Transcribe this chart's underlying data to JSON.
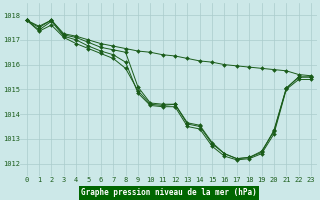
{
  "line1": [
    1017.8,
    1017.5,
    1017.8,
    1017.2,
    1017.1,
    1016.9,
    1016.7,
    1016.6,
    1016.5,
    1015.1,
    1014.45,
    1014.4,
    1014.4,
    1013.6,
    1013.5,
    1012.8,
    1012.4,
    1012.2,
    1012.25,
    1012.5,
    1013.3,
    1015.05,
    1015.5,
    1015.5
  ],
  "line2": [
    1017.8,
    1017.4,
    1017.75,
    1017.15,
    1017.0,
    1016.75,
    1016.55,
    1016.4,
    1016.1,
    1014.85,
    1014.35,
    1014.3,
    1014.3,
    1013.5,
    1013.4,
    1012.7,
    1012.3,
    1012.15,
    1012.2,
    1012.4,
    1013.2,
    1015.0,
    1015.4,
    1015.4
  ],
  "line3": [
    1017.8,
    1017.35,
    1017.6,
    1017.1,
    1016.85,
    1016.65,
    1016.45,
    1016.25,
    1015.85,
    1014.95,
    1014.4,
    1014.35,
    1014.4,
    1013.65,
    1013.55,
    1012.85,
    1012.4,
    1012.2,
    1012.25,
    1012.45,
    1013.35,
    1015.05,
    1015.5,
    1015.5
  ],
  "line4": [
    1017.8,
    1017.55,
    1017.8,
    1017.25,
    1017.15,
    1017.0,
    1016.85,
    1016.75,
    1016.65,
    1016.55,
    1016.5,
    1016.4,
    1016.35,
    1016.25,
    1016.15,
    1016.1,
    1016.0,
    1015.95,
    1015.9,
    1015.85,
    1015.8,
    1015.75,
    1015.6,
    1015.55
  ],
  "x": [
    0,
    1,
    2,
    3,
    4,
    5,
    6,
    7,
    8,
    9,
    10,
    11,
    12,
    13,
    14,
    15,
    16,
    17,
    18,
    19,
    20,
    21,
    22,
    23
  ],
  "ylim": [
    1011.5,
    1018.5
  ],
  "yticks": [
    1012,
    1013,
    1014,
    1015,
    1016,
    1017,
    1018
  ],
  "xlim": [
    -0.5,
    23.5
  ],
  "xticks": [
    0,
    1,
    2,
    3,
    4,
    5,
    6,
    7,
    8,
    9,
    10,
    11,
    12,
    13,
    14,
    15,
    16,
    17,
    18,
    19,
    20,
    21,
    22,
    23
  ],
  "line_color": "#1a5c1a",
  "bg_color": "#cce8e8",
  "grid_color": "#aacccc",
  "label_bg": "#006600",
  "label_color": "#ffffff",
  "xlabel": "Graphe pression niveau de la mer (hPa)"
}
